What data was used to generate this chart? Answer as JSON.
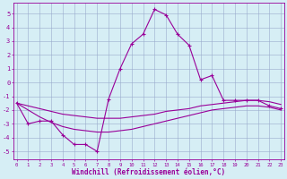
{
  "x": [
    0,
    1,
    2,
    3,
    4,
    5,
    6,
    7,
    8,
    9,
    10,
    11,
    12,
    13,
    14,
    15,
    16,
    17,
    18,
    19,
    20,
    21,
    22,
    23
  ],
  "windchill_line": [
    -1.5,
    -3.0,
    -2.8,
    -2.8,
    -3.8,
    -4.5,
    -4.5,
    -5.0,
    -1.2,
    1.0,
    2.8,
    3.5,
    5.3,
    4.9,
    3.5,
    2.7,
    0.2,
    0.5,
    -1.3,
    -1.3,
    -1.3,
    -1.3,
    -1.7,
    -1.9
  ],
  "curve_upper": [
    -1.5,
    -1.7,
    -1.9,
    -2.1,
    -2.3,
    -2.4,
    -2.5,
    -2.6,
    -2.6,
    -2.6,
    -2.5,
    -2.4,
    -2.3,
    -2.1,
    -2.0,
    -1.9,
    -1.7,
    -1.6,
    -1.5,
    -1.4,
    -1.3,
    -1.3,
    -1.4,
    -1.6
  ],
  "curve_lower": [
    -1.5,
    -2.0,
    -2.5,
    -2.9,
    -3.2,
    -3.4,
    -3.5,
    -3.6,
    -3.6,
    -3.5,
    -3.4,
    -3.2,
    -3.0,
    -2.8,
    -2.6,
    -2.4,
    -2.2,
    -2.0,
    -1.9,
    -1.8,
    -1.7,
    -1.7,
    -1.8,
    -2.0
  ],
  "line_color": "#990099",
  "bg_color": "#d6eef5",
  "grid_color": "#99aacc",
  "xlabel": "Windchill (Refroidissement éolien,°C)",
  "yticks": [
    -5,
    -4,
    -3,
    -2,
    -1,
    0,
    1,
    2,
    3,
    4,
    5
  ],
  "xticks": [
    0,
    1,
    2,
    3,
    4,
    5,
    6,
    7,
    8,
    9,
    10,
    11,
    12,
    13,
    14,
    15,
    16,
    17,
    18,
    19,
    20,
    21,
    22,
    23
  ],
  "ylim": [
    -5.6,
    5.8
  ],
  "xlim": [
    -0.3,
    23.3
  ]
}
